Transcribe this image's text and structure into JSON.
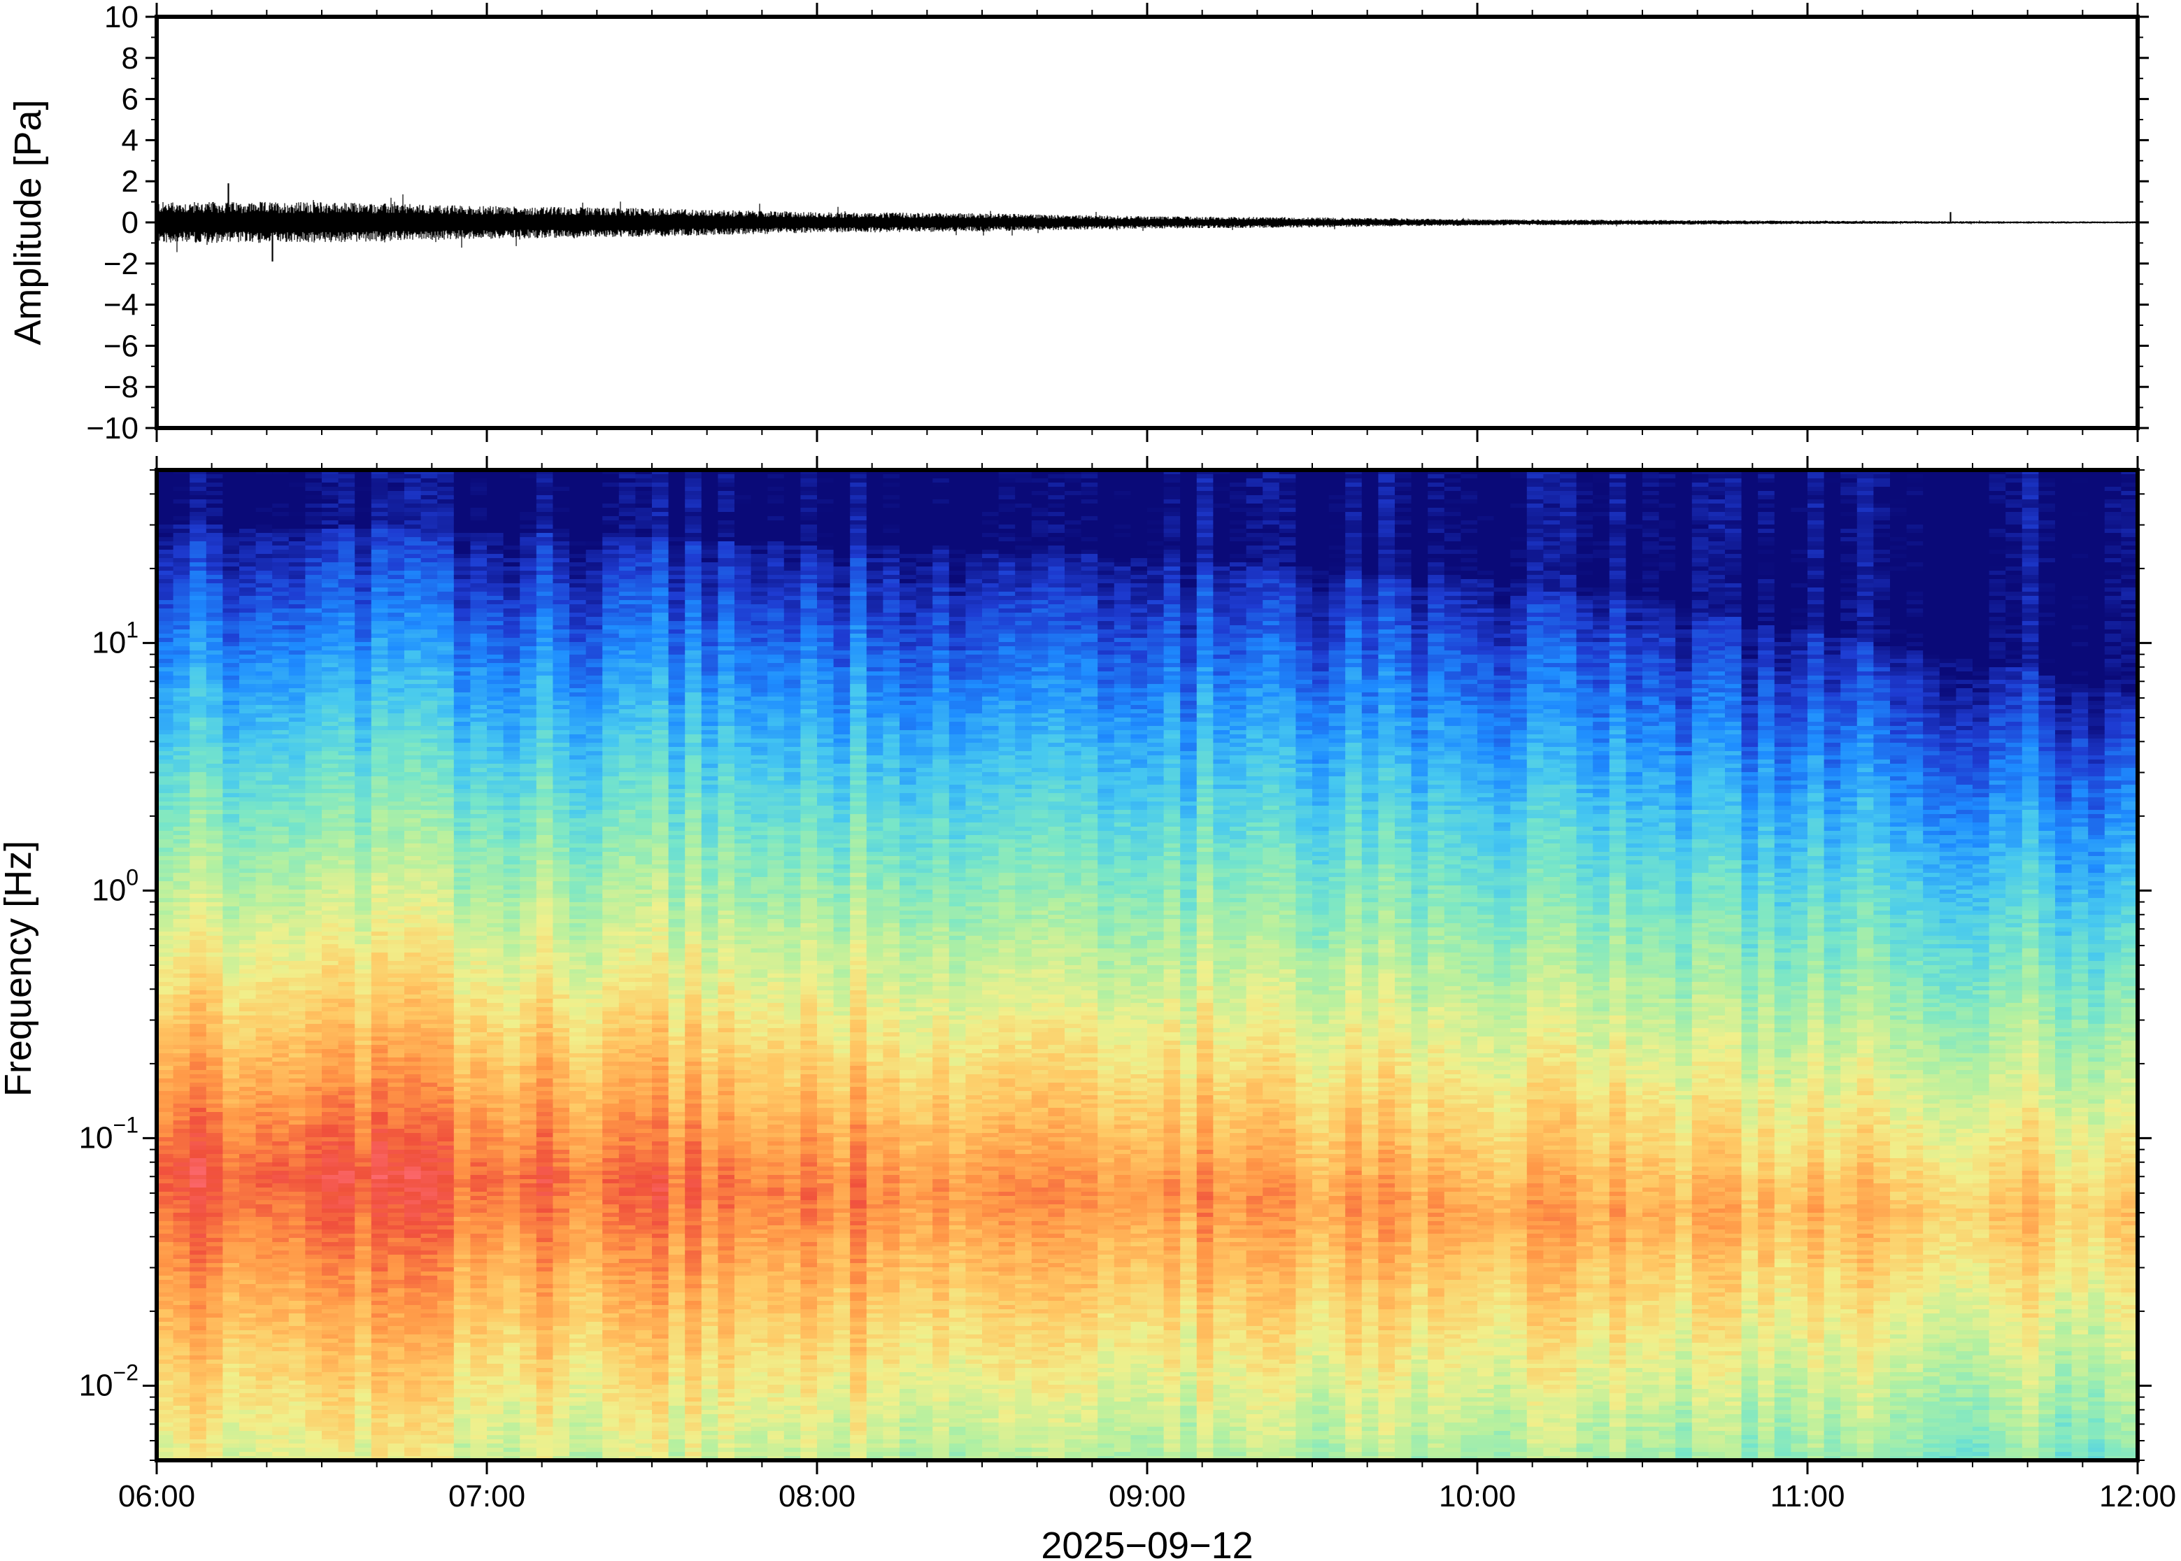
{
  "chart_data": [
    {
      "type": "line",
      "panel": "waveform",
      "ylabel": "Amplitude [Pa]",
      "ylim": [
        -10,
        10
      ],
      "yticks": [
        -10,
        -8,
        -6,
        -4,
        -2,
        0,
        2,
        4,
        6,
        8,
        10
      ],
      "ytick_labels": [
        "−10",
        "−8",
        "−6",
        "−4",
        "−2",
        "0",
        "2",
        "4",
        "6",
        "8",
        "10"
      ],
      "xlim": [
        "2025-09-12 06:00",
        "2025-09-12 12:00"
      ],
      "envelope": {
        "time": [
          "06:00",
          "06:30",
          "07:00",
          "07:30",
          "08:00",
          "08:30",
          "09:00",
          "09:30",
          "10:00",
          "10:30",
          "11:00",
          "11:30",
          "12:00"
        ],
        "half_amplitude_pa": [
          1.0,
          1.0,
          0.8,
          0.7,
          0.5,
          0.45,
          0.3,
          0.25,
          0.15,
          0.12,
          0.08,
          0.06,
          0.05
        ]
      },
      "peaks": [
        {
          "time": "06:13",
          "value_pa": 1.9
        },
        {
          "time": "06:21",
          "value_pa": -1.9
        },
        {
          "time": "11:26",
          "value_pa": 0.5
        }
      ],
      "line_color": "#000000"
    },
    {
      "type": "heatmap",
      "panel": "spectrogram",
      "ylabel": "Frequency [Hz]",
      "yscale": "log",
      "ylim": [
        0.005,
        50
      ],
      "yticks": [
        0.01,
        0.1,
        1,
        10
      ],
      "ytick_labels": [
        {
          "base": "10",
          "exp": "−2"
        },
        {
          "base": "10",
          "exp": "−1"
        },
        {
          "base": "10",
          "exp": "0"
        },
        {
          "base": "10",
          "exp": "1"
        }
      ],
      "xlabel": "2025−09−12",
      "xlim": [
        "06:00",
        "12:00"
      ],
      "xticks": [
        "06:00",
        "07:00",
        "08:00",
        "09:00",
        "10:00",
        "11:00",
        "12:00"
      ],
      "colormap": [
        "#0a0a78",
        "#1e3cd2",
        "#1e8cff",
        "#46c8f0",
        "#78e6c8",
        "#b4f0a0",
        "#f0f08c",
        "#ffc864",
        "#ff9646",
        "#f0503c",
        "#ff6e78"
      ],
      "energy_profile": {
        "description_time": [
          "06:00",
          "07:00",
          "08:00",
          "09:00",
          "10:00",
          "11:00",
          "12:00"
        ],
        "peak_frequency_hz": [
          0.07,
          0.07,
          0.06,
          0.06,
          0.05,
          0.05,
          0.05
        ],
        "upper_cutoff_hz": [
          30,
          28,
          25,
          22,
          18,
          11,
          6
        ]
      }
    }
  ]
}
